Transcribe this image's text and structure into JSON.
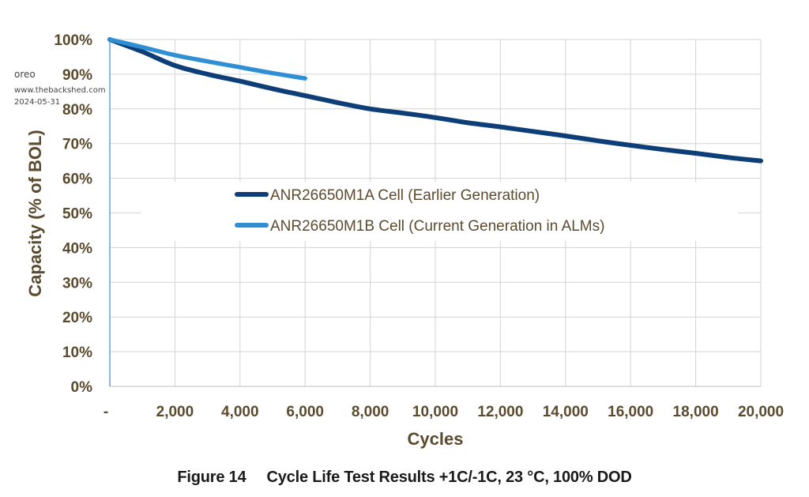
{
  "watermark": {
    "user": "oreo",
    "site": "www.thebackshed.com",
    "date": "2024-05-31"
  },
  "caption": {
    "label": "Figure 14",
    "text": "Cycle Life Test Results +1C/-1C, 23 °C, 100% DOD"
  },
  "colors": {
    "series_dark": "#0d3e77",
    "series_light": "#2f8fd5",
    "grid": "#d3d3d3",
    "text": "#5b4a2e"
  },
  "chart_data": {
    "type": "line",
    "title": "Cycle Life Test Results +1C/-1C, 23 °C, 100% DOD",
    "xlabel": "Cycles",
    "ylabel": "Capacity (% of BOL)",
    "xlim": [
      0,
      20000
    ],
    "ylim": [
      0,
      100
    ],
    "x_ticks": [
      0,
      2000,
      4000,
      6000,
      8000,
      10000,
      12000,
      14000,
      16000,
      18000,
      20000
    ],
    "x_tick_labels": [
      "-",
      "2,000",
      "4,000",
      "6,000",
      "8,000",
      "10,000",
      "12,000",
      "14,000",
      "16,000",
      "18,000",
      "20,000"
    ],
    "y_ticks": [
      0,
      10,
      20,
      30,
      40,
      50,
      60,
      70,
      80,
      90,
      100
    ],
    "y_tick_labels": [
      "0%",
      "10%",
      "20%",
      "30%",
      "40%",
      "50%",
      "60%",
      "70%",
      "80%",
      "90%",
      "100%"
    ],
    "grid": true,
    "legend": "center",
    "series": [
      {
        "name": "ANR26650M1A Cell (Earlier Generation)",
        "color": "#0d3e77",
        "x": [
          0,
          1000,
          2000,
          3000,
          4000,
          5000,
          6000,
          7000,
          8000,
          9000,
          10000,
          11000,
          12000,
          13000,
          14000,
          15000,
          16000,
          17000,
          18000,
          19000,
          20000
        ],
        "y": [
          100,
          96.5,
          92.5,
          90,
          88,
          85.8,
          83.8,
          81.8,
          80,
          78.8,
          77.5,
          76,
          74.8,
          73.5,
          72.2,
          70.8,
          69.5,
          68.3,
          67.2,
          66,
          65
        ]
      },
      {
        "name": "ANR26650M1B Cell (Current Generation in ALMs)",
        "color": "#2f8fd5",
        "x": [
          0,
          1000,
          2000,
          3000,
          4000,
          5000,
          6000
        ],
        "y": [
          100,
          97.8,
          95.5,
          93.7,
          92,
          90.3,
          88.8
        ]
      }
    ]
  }
}
